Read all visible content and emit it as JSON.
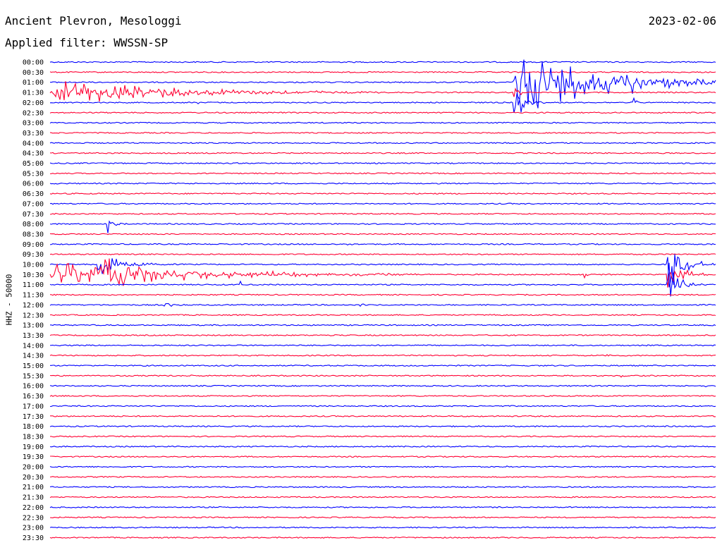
{
  "header": {
    "station": "Ancient Plevron, Mesologgi",
    "filter": "Applied filter: WWSSN-SP",
    "date": "2023-02-06"
  },
  "chart_data": {
    "type": "line",
    "title": "Ancient Plevron, Mesologgi",
    "subtitle": "Applied filter: WWSSN-SP",
    "date": "2023-02-06",
    "ylabel": "HHZ - 50000",
    "row_labels": [
      "00:00",
      "00:30",
      "01:00",
      "01:30",
      "02:00",
      "02:30",
      "03:00",
      "03:30",
      "04:00",
      "04:30",
      "05:00",
      "05:30",
      "06:00",
      "06:30",
      "07:00",
      "07:30",
      "08:00",
      "08:30",
      "09:00",
      "09:30",
      "10:00",
      "10:30",
      "11:00",
      "11:30",
      "12:00",
      "12:30",
      "13:00",
      "13:30",
      "14:00",
      "14:30",
      "15:00",
      "15:30",
      "16:00",
      "16:30",
      "17:00",
      "17:30",
      "18:00",
      "18:30",
      "19:00",
      "19:30",
      "20:00",
      "20:30",
      "21:00",
      "21:30",
      "22:00",
      "22:30",
      "23:00",
      "23:30"
    ],
    "colors": [
      "#0000ff",
      "#ff0033"
    ],
    "grid": false,
    "events": [
      {
        "row": 2,
        "start": 0.695,
        "end": 1.0,
        "amp": 55,
        "decay": 0.8,
        "freq": 2.2
      },
      {
        "row": 2,
        "start": 0.865,
        "end": 0.94,
        "amp": 45,
        "decay": 4.0,
        "freq": 2.2
      },
      {
        "row": 3,
        "start": 0.0,
        "end": 0.5,
        "amp": 22,
        "decay": 0.9,
        "freq": 0.9
      },
      {
        "row": 3,
        "start": 0.04,
        "end": 0.1,
        "amp": 18,
        "decay": 2.0,
        "freq": 1.5
      },
      {
        "row": 3,
        "start": 0.695,
        "end": 0.76,
        "amp": 16,
        "decay": 2.5,
        "freq": 1.5
      },
      {
        "row": 4,
        "start": 0.22,
        "end": 0.245,
        "amp": 8,
        "decay": 3.0,
        "freq": 1.5
      },
      {
        "row": 4,
        "start": 0.695,
        "end": 0.76,
        "amp": 35,
        "decay": 1.5,
        "freq": 2.0
      },
      {
        "row": 4,
        "start": 0.875,
        "end": 0.905,
        "amp": 16,
        "decay": 3.0,
        "freq": 2.0
      },
      {
        "row": 13,
        "start": 0.875,
        "end": 0.895,
        "amp": 10,
        "decay": 3.0,
        "freq": 1.5
      },
      {
        "row": 16,
        "start": 0.085,
        "end": 0.115,
        "amp": 28,
        "decay": 1.5,
        "freq": 1.0
      },
      {
        "row": 18,
        "start": 0.445,
        "end": 0.47,
        "amp": 8,
        "decay": 3.0,
        "freq": 1.5
      },
      {
        "row": 20,
        "start": 0.07,
        "end": 0.2,
        "amp": 30,
        "decay": 1.5,
        "freq": 1.0
      },
      {
        "row": 20,
        "start": 0.925,
        "end": 1.0,
        "amp": 60,
        "decay": 1.2,
        "freq": 2.2
      },
      {
        "row": 21,
        "start": 0.0,
        "end": 0.55,
        "amp": 22,
        "decay": 0.9,
        "freq": 0.8
      },
      {
        "row": 21,
        "start": 0.08,
        "end": 0.2,
        "amp": 35,
        "decay": 1.5,
        "freq": 0.9
      },
      {
        "row": 21,
        "start": 0.8,
        "end": 0.83,
        "amp": 10,
        "decay": 3.0,
        "freq": 1.2
      },
      {
        "row": 21,
        "start": 0.925,
        "end": 1.0,
        "amp": 30,
        "decay": 1.2,
        "freq": 2.0
      },
      {
        "row": 22,
        "start": 0.285,
        "end": 0.31,
        "amp": 10,
        "decay": 3.0,
        "freq": 1.5
      },
      {
        "row": 22,
        "start": 0.925,
        "end": 1.0,
        "amp": 45,
        "decay": 1.5,
        "freq": 2.2
      },
      {
        "row": 24,
        "start": 0.17,
        "end": 0.24,
        "amp": 8,
        "decay": 2.0,
        "freq": 1.5
      },
      {
        "row": 24,
        "start": 0.465,
        "end": 0.49,
        "amp": 14,
        "decay": 3.0,
        "freq": 1.5
      },
      {
        "row": 25,
        "start": 0.66,
        "end": 0.7,
        "amp": 5,
        "decay": 2.5,
        "freq": 1.5
      },
      {
        "row": 27,
        "start": 0.42,
        "end": 0.44,
        "amp": 6,
        "decay": 3.0,
        "freq": 1.5
      },
      {
        "row": 29,
        "start": 0.835,
        "end": 0.855,
        "amp": 8,
        "decay": 3.0,
        "freq": 1.5
      },
      {
        "row": 31,
        "start": 0.21,
        "end": 0.235,
        "amp": 5,
        "decay": 3.0,
        "freq": 1.5
      },
      {
        "row": 31,
        "start": 0.855,
        "end": 0.875,
        "amp": 10,
        "decay": 3.0,
        "freq": 1.5
      },
      {
        "row": 32,
        "start": 0.43,
        "end": 0.45,
        "amp": 6,
        "decay": 3.0,
        "freq": 1.5
      },
      {
        "row": 32,
        "start": 0.98,
        "end": 1.0,
        "amp": 6,
        "decay": 2.0,
        "freq": 1.5
      },
      {
        "row": 35,
        "start": 0.665,
        "end": 0.675,
        "amp": 18,
        "decay": 4.0,
        "freq": 2.0
      },
      {
        "row": 35,
        "start": 0.765,
        "end": 0.775,
        "amp": 12,
        "decay": 4.0,
        "freq": 2.0
      },
      {
        "row": 40,
        "start": 0.685,
        "end": 0.7,
        "amp": 4,
        "decay": 3.0,
        "freq": 1.5
      },
      {
        "row": 41,
        "start": 0.225,
        "end": 0.24,
        "amp": 6,
        "decay": 3.0,
        "freq": 1.5
      },
      {
        "row": 41,
        "start": 0.98,
        "end": 1.0,
        "amp": 6,
        "decay": 2.0,
        "freq": 1.5
      }
    ]
  }
}
